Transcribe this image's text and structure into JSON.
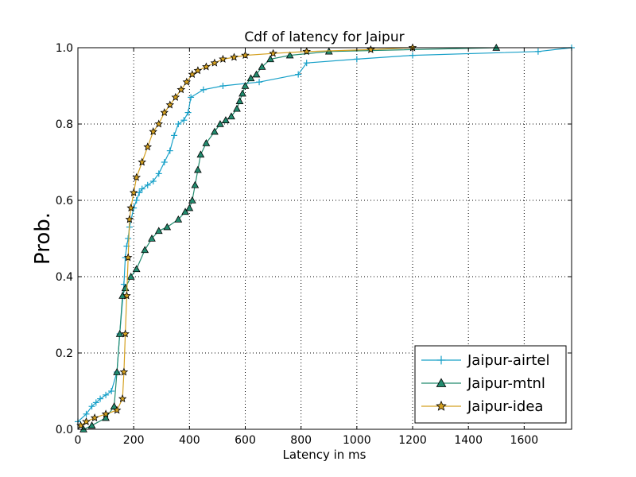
{
  "chart_data": {
    "type": "line",
    "title": "Cdf of latency for Jaipur",
    "xlabel": "Latency in ms",
    "ylabel": "Prob.",
    "xlim": [
      0,
      1770
    ],
    "ylim": [
      0.0,
      1.0
    ],
    "x_ticks": [
      0,
      200,
      400,
      600,
      800,
      1000,
      1200,
      1400,
      1600
    ],
    "y_ticks": [
      0.0,
      0.2,
      0.4,
      0.6,
      0.8,
      1.0
    ],
    "grid": true,
    "legend_position": "lower-right",
    "series": [
      {
        "name": "Jaipur-airtel",
        "color": "#17a0c8",
        "marker": "plus",
        "x": [
          0,
          30,
          50,
          65,
          80,
          100,
          120,
          140,
          150,
          165,
          170,
          175,
          180,
          185,
          200,
          210,
          220,
          230,
          250,
          270,
          290,
          310,
          330,
          345,
          360,
          380,
          395,
          405,
          450,
          520,
          650,
          790,
          820,
          1000,
          1200,
          1650,
          1770
        ],
        "y": [
          0.02,
          0.04,
          0.06,
          0.07,
          0.08,
          0.09,
          0.1,
          0.15,
          0.25,
          0.38,
          0.45,
          0.48,
          0.5,
          0.53,
          0.58,
          0.6,
          0.62,
          0.63,
          0.64,
          0.65,
          0.67,
          0.7,
          0.73,
          0.77,
          0.8,
          0.81,
          0.83,
          0.87,
          0.89,
          0.9,
          0.91,
          0.93,
          0.96,
          0.97,
          0.98,
          0.99,
          1.0
        ]
      },
      {
        "name": "Jaipur-mtnl",
        "color": "#228b6e",
        "marker": "triangle",
        "x": [
          20,
          50,
          100,
          130,
          140,
          150,
          160,
          170,
          190,
          210,
          240,
          265,
          290,
          320,
          360,
          385,
          400,
          410,
          420,
          430,
          440,
          460,
          490,
          510,
          530,
          550,
          570,
          580,
          590,
          600,
          620,
          640,
          660,
          690,
          760,
          900,
          1500
        ],
        "y": [
          0.0,
          0.01,
          0.03,
          0.06,
          0.15,
          0.25,
          0.35,
          0.37,
          0.4,
          0.42,
          0.47,
          0.5,
          0.52,
          0.53,
          0.55,
          0.57,
          0.58,
          0.6,
          0.64,
          0.68,
          0.72,
          0.75,
          0.78,
          0.8,
          0.81,
          0.82,
          0.84,
          0.86,
          0.88,
          0.9,
          0.92,
          0.93,
          0.95,
          0.97,
          0.98,
          0.99,
          1.0
        ]
      },
      {
        "name": "Jaipur-idea",
        "color": "#d4a020",
        "marker": "star",
        "x": [
          10,
          30,
          60,
          100,
          140,
          160,
          165,
          170,
          175,
          180,
          185,
          190,
          200,
          210,
          230,
          250,
          270,
          290,
          310,
          330,
          350,
          370,
          390,
          410,
          430,
          460,
          490,
          520,
          560,
          600,
          700,
          820,
          1050,
          1200
        ],
        "y": [
          0.01,
          0.02,
          0.03,
          0.04,
          0.05,
          0.08,
          0.15,
          0.25,
          0.35,
          0.45,
          0.55,
          0.58,
          0.62,
          0.66,
          0.7,
          0.74,
          0.78,
          0.8,
          0.83,
          0.85,
          0.87,
          0.89,
          0.91,
          0.93,
          0.94,
          0.95,
          0.96,
          0.97,
          0.975,
          0.98,
          0.985,
          0.99,
          0.995,
          1.0
        ]
      }
    ]
  }
}
